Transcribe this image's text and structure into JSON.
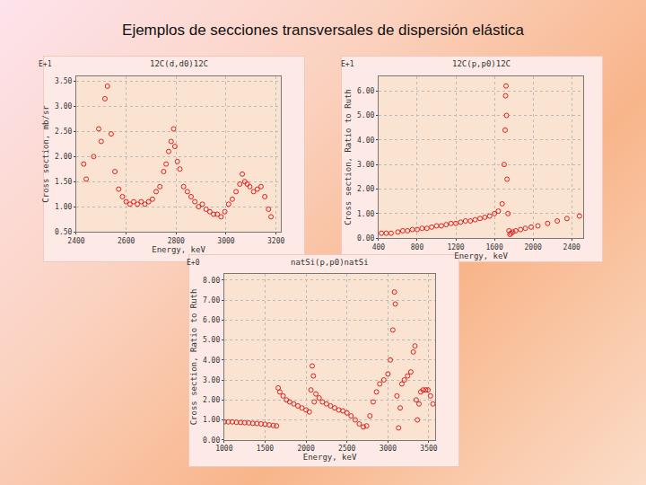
{
  "title": "Ejemplos de secciones transversales de dispersión elástica",
  "chart_data": [
    {
      "type": "scatter",
      "title": "12C(d,d0)12C",
      "x_label": "Energy, keV",
      "y_label": "Cross section, mb/sr",
      "annotations": [
        "E+1"
      ],
      "marker": "open-circle",
      "color": "#e0201c",
      "grid": true,
      "x": [
        2430,
        2440,
        2470,
        2490,
        2500,
        2515,
        2525,
        2540,
        2555,
        2570,
        2585,
        2600,
        2615,
        2630,
        2645,
        2660,
        2675,
        2690,
        2705,
        2720,
        2735,
        2750,
        2760,
        2770,
        2780,
        2790,
        2795,
        2805,
        2815,
        2830,
        2845,
        2860,
        2875,
        2890,
        2905,
        2920,
        2935,
        2950,
        2965,
        2980,
        2995,
        3010,
        3025,
        3040,
        3055,
        3065,
        3075,
        3085,
        3095,
        3110,
        3125,
        3140,
        3155,
        3170,
        3180
      ],
      "values": [
        1.85,
        1.55,
        2.0,
        2.55,
        2.3,
        3.15,
        3.4,
        2.45,
        1.7,
        1.35,
        1.2,
        1.1,
        1.05,
        1.1,
        1.05,
        1.1,
        1.05,
        1.1,
        1.15,
        1.3,
        1.4,
        1.7,
        1.85,
        2.1,
        2.3,
        2.55,
        2.2,
        1.9,
        1.75,
        1.4,
        1.3,
        1.2,
        1.1,
        1.0,
        1.05,
        0.95,
        0.9,
        0.85,
        0.85,
        0.8,
        0.9,
        1.05,
        1.15,
        1.3,
        1.45,
        1.65,
        1.5,
        1.45,
        1.4,
        1.3,
        1.35,
        1.4,
        1.2,
        0.95,
        0.8
      ],
      "xlim": [
        2400,
        3220
      ],
      "xticks": [
        2400,
        2600,
        2800,
        3000,
        3200
      ],
      "ylim": [
        0.5,
        3.6
      ],
      "yticks": [
        {
          "value": 0.5,
          "label": "0.50"
        },
        {
          "value": 1,
          "label": "1.00"
        },
        {
          "value": 1.5,
          "label": "1.50"
        },
        {
          "value": 2,
          "label": "2.00"
        },
        {
          "value": 2.5,
          "label": "2.50"
        },
        {
          "value": 3,
          "label": "3.00"
        },
        {
          "value": 3.5,
          "label": "3.50"
        }
      ]
    },
    {
      "type": "scatter",
      "title": "12C(p,p0)12C",
      "x_label": "Energy, keV",
      "y_label": "Cross section, Ratio to Ruth",
      "annotations": [
        "E+1"
      ],
      "marker": "open-circle",
      "color": "#e0201c",
      "grid": true,
      "x": [
        430,
        480,
        530,
        600,
        650,
        700,
        750,
        800,
        850,
        900,
        950,
        1000,
        1050,
        1100,
        1150,
        1200,
        1250,
        1300,
        1350,
        1400,
        1450,
        1500,
        1550,
        1600,
        1640,
        1680,
        1700,
        1710,
        1715,
        1720,
        1725,
        1730,
        1740,
        1750,
        1760,
        1770,
        1790,
        1820,
        1870,
        1920,
        1980,
        2050,
        2150,
        2250,
        2350,
        2480
      ],
      "values": [
        0.2,
        0.2,
        0.2,
        0.25,
        0.3,
        0.3,
        0.35,
        0.35,
        0.4,
        0.4,
        0.45,
        0.5,
        0.5,
        0.55,
        0.6,
        0.6,
        0.65,
        0.7,
        0.7,
        0.75,
        0.8,
        0.85,
        0.9,
        1.0,
        1.1,
        1.4,
        3.0,
        4.4,
        5.8,
        6.2,
        5.0,
        2.4,
        1.0,
        0.3,
        0.15,
        0.2,
        0.25,
        0.3,
        0.35,
        0.4,
        0.45,
        0.5,
        0.6,
        0.7,
        0.8,
        0.9
      ],
      "xlim": [
        400,
        2520
      ],
      "xticks": [
        400,
        800,
        1200,
        1600,
        2000,
        2400
      ],
      "ylim": [
        0,
        6.6
      ],
      "yticks": [
        {
          "value": 0,
          "label": "0.00"
        },
        {
          "value": 1,
          "label": "1.00"
        },
        {
          "value": 2,
          "label": "2.00"
        },
        {
          "value": 3,
          "label": "3.00"
        },
        {
          "value": 4,
          "label": "4.00"
        },
        {
          "value": 5,
          "label": "5.00"
        },
        {
          "value": 6,
          "label": "6.00"
        }
      ]
    },
    {
      "type": "scatter",
      "title": "natSi(p,p0)natSi",
      "x_label": "Energy, keV",
      "y_label": "Cross section, Ratio to Ruth",
      "annotations": [
        "E+0"
      ],
      "marker": "open-circle",
      "color": "#e0201c",
      "grid": true,
      "x": [
        1000,
        1050,
        1100,
        1150,
        1200,
        1250,
        1300,
        1350,
        1400,
        1450,
        1500,
        1550,
        1600,
        1640,
        1660,
        1680,
        1720,
        1760,
        1800,
        1850,
        1900,
        1950,
        2000,
        2040,
        2060,
        2075,
        2090,
        2100,
        2120,
        2160,
        2200,
        2250,
        2300,
        2350,
        2400,
        2450,
        2500,
        2550,
        2600,
        2650,
        2700,
        2740,
        2780,
        2820,
        2860,
        2900,
        2950,
        3000,
        3030,
        3060,
        3080,
        3090,
        3110,
        3130,
        3150,
        3170,
        3200,
        3240,
        3280,
        3310,
        3330,
        3345,
        3360,
        3380,
        3400,
        3430,
        3460,
        3490,
        3520,
        3550
      ],
      "values": [
        0.9,
        0.9,
        0.9,
        0.88,
        0.87,
        0.86,
        0.85,
        0.83,
        0.82,
        0.8,
        0.78,
        0.75,
        0.72,
        0.7,
        2.6,
        2.4,
        2.2,
        2.0,
        1.9,
        1.8,
        1.7,
        1.6,
        1.5,
        1.4,
        2.5,
        3.7,
        3.2,
        1.9,
        2.3,
        2.1,
        1.9,
        1.8,
        1.7,
        1.6,
        1.5,
        1.45,
        1.35,
        1.2,
        1.0,
        0.8,
        0.65,
        0.7,
        1.2,
        1.9,
        2.4,
        2.8,
        3.0,
        3.3,
        4.0,
        5.5,
        7.4,
        6.8,
        2.2,
        0.6,
        1.6,
        2.8,
        3.0,
        3.2,
        3.4,
        4.4,
        4.7,
        2.0,
        1.0,
        1.8,
        2.4,
        2.5,
        2.5,
        2.5,
        2.2,
        1.8
      ],
      "xlim": [
        1000,
        3580
      ],
      "xticks": [
        1000,
        1500,
        2000,
        2500,
        3000,
        3500
      ],
      "ylim": [
        0,
        8.3
      ],
      "yticks": [
        {
          "value": 0,
          "label": "0.00"
        },
        {
          "value": 1,
          "label": "1.00"
        },
        {
          "value": 2,
          "label": "2.00"
        },
        {
          "value": 3,
          "label": "3.00"
        },
        {
          "value": 4,
          "label": "4.00"
        },
        {
          "value": 5,
          "label": "5.00"
        },
        {
          "value": 6,
          "label": "6.00"
        },
        {
          "value": 7,
          "label": "7.00"
        },
        {
          "value": 8,
          "label": "8.00"
        }
      ]
    }
  ]
}
